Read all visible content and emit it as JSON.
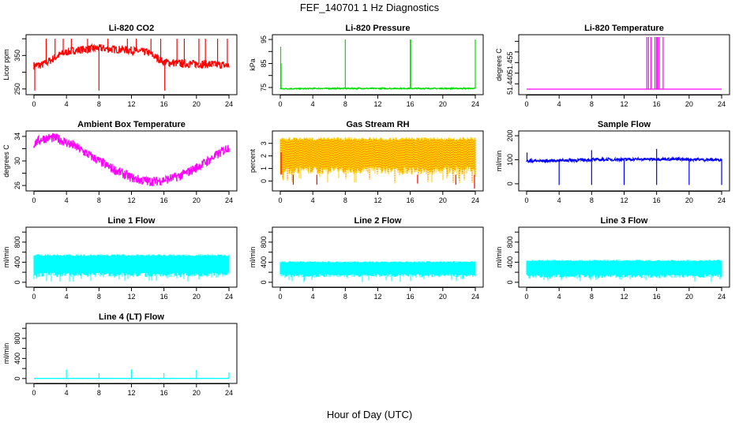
{
  "chart_data": {
    "title": "FEF_140701  1 Hz Diagnostics",
    "xlabel": "Hour of Day (UTC)",
    "xlim": [
      0,
      24
    ],
    "xticks": [
      0,
      4,
      8,
      12,
      16,
      20,
      24
    ],
    "panels": [
      {
        "title": "Li-820 CO2",
        "type": "line",
        "ylabel": "Licor ppm",
        "color": "#ff0000",
        "ylim": [
          240,
          405
        ],
        "yticks": [
          250,
          300,
          350,
          400
        ],
        "ytick_labels": [
          "250",
          "",
          "350",
          ""
        ],
        "hourly_baseline": [
          320,
          322,
          335,
          350,
          360,
          365,
          368,
          370,
          372,
          370,
          368,
          368,
          365,
          362,
          360,
          345,
          330,
          328,
          326,
          325,
          325,
          324,
          323,
          322,
          320
        ],
        "noise": 12,
        "spikes": [
          [
            0.1,
            245
          ],
          [
            1.5,
            400
          ],
          [
            2.6,
            400
          ],
          [
            3.6,
            400
          ],
          [
            4.6,
            400
          ],
          [
            6.6,
            400
          ],
          [
            8,
            245
          ],
          [
            9.1,
            400
          ],
          [
            11.5,
            400
          ],
          [
            12.6,
            400
          ],
          [
            14.4,
            400
          ],
          [
            15.6,
            400
          ],
          [
            16.1,
            245
          ],
          [
            17.6,
            400
          ],
          [
            18.5,
            400
          ],
          [
            20.3,
            400
          ],
          [
            21.1,
            400
          ],
          [
            22.6,
            400
          ],
          [
            23.8,
            400
          ]
        ]
      },
      {
        "title": "Li-820 Pressure",
        "type": "line",
        "ylabel": "kPa",
        "color": "#00dd00",
        "ylim": [
          73,
          96
        ],
        "yticks": [
          75,
          80,
          85,
          90,
          95
        ],
        "ytick_labels": [
          "75",
          "",
          "85",
          "",
          "95"
        ],
        "hourly_baseline": [
          74.5,
          74.5,
          74.5,
          74.5,
          74.6,
          74.6,
          74.6,
          74.6,
          74.6,
          74.6,
          74.6,
          74.6,
          74.6,
          74.6,
          74.6,
          74.6,
          74.6,
          74.6,
          74.6,
          74.6,
          74.6,
          74.6,
          74.6,
          74.6,
          74.6
        ],
        "noise": 0.2,
        "spikes": [
          [
            0.05,
            92
          ],
          [
            0.1,
            85
          ],
          [
            8,
            95
          ],
          [
            16,
            95
          ],
          [
            16.05,
            95
          ],
          [
            24,
            95
          ]
        ]
      },
      {
        "title": "Li-820 Temperature",
        "type": "line",
        "ylabel": "degrees C",
        "color": "#ff00ff",
        "ylim": [
          51.436,
          51.462
        ],
        "yticks": [
          51.44,
          51.445,
          51.45,
          51.455,
          51.46
        ],
        "ytick_labels": [
          "51.440",
          "",
          "51.455",
          "",
          ""
        ],
        "hourly_baseline": [
          51.4375,
          51.4375,
          51.4375,
          51.4375,
          51.4375,
          51.4375,
          51.4375,
          51.4375,
          51.4375,
          51.4375,
          51.4375,
          51.4375,
          51.4375,
          51.4375,
          51.4375,
          51.4375,
          51.4375,
          51.4375,
          51.4375,
          51.4375,
          51.4375,
          51.4375,
          51.4375,
          51.4375,
          51.4375
        ],
        "noise": 0,
        "spikes": [
          [
            14.8,
            51.462
          ],
          [
            15.0,
            51.462
          ],
          [
            15.3,
            51.462
          ],
          [
            15.8,
            51.462
          ],
          [
            16.0,
            51.462
          ],
          [
            16.1,
            51.462
          ],
          [
            16.3,
            51.462
          ],
          [
            16.8,
            51.462
          ]
        ]
      },
      {
        "title": "Ambient Box Temperature",
        "type": "line",
        "ylabel": "degrees C",
        "color": "#ff00ff",
        "ylim": [
          25.5,
          34.5
        ],
        "yticks": [
          26,
          28,
          30,
          32,
          34
        ],
        "ytick_labels": [
          "26",
          "",
          "30",
          "",
          "34"
        ],
        "hourly_baseline": [
          32.8,
          33.6,
          33.8,
          33.6,
          33.0,
          32.4,
          31.6,
          30.8,
          30.0,
          29.2,
          28.5,
          27.9,
          27.3,
          26.9,
          26.7,
          26.7,
          26.9,
          27.2,
          27.6,
          28.2,
          28.9,
          29.7,
          30.5,
          31.4,
          32.3
        ],
        "noise": 0.8,
        "spikes": []
      },
      {
        "title": "Gas Stream RH",
        "type": "band",
        "ylabel": "percent",
        "color": "#ffcc00",
        "color2": "#ff0000",
        "ylim": [
          -0.6,
          3.8
        ],
        "yticks": [
          0,
          1,
          2,
          3
        ],
        "ytick_labels": [
          "0",
          "1",
          "2",
          "3"
        ],
        "band_low": 0.5,
        "band_high": 3.5,
        "spikes": [
          [
            0.1,
            2.3
          ],
          [
            1.6,
            -0.3
          ],
          [
            4.5,
            -0.3
          ],
          [
            16.9,
            -0.2
          ],
          [
            21.6,
            -0.3
          ],
          [
            23.9,
            -0.6
          ]
        ]
      },
      {
        "title": "Sample Flow",
        "type": "line",
        "ylabel": "ml/min",
        "color": "#0000ff",
        "ylim": [
          -20,
          210
        ],
        "yticks": [
          0,
          100,
          200
        ],
        "ytick_labels": [
          "0",
          "100",
          "200"
        ],
        "hourly_baseline": [
          95,
          95,
          95,
          96,
          97,
          98,
          98,
          99,
          100,
          100,
          101,
          101,
          101,
          102,
          102,
          102,
          103,
          103,
          102,
          102,
          101,
          101,
          100,
          100,
          100
        ],
        "noise": 6,
        "spikes": [
          [
            0.05,
            130
          ],
          [
            4,
            -5
          ],
          [
            8,
            -5
          ],
          [
            8,
            140
          ],
          [
            12,
            -5
          ],
          [
            16,
            -5
          ],
          [
            16,
            145
          ],
          [
            20,
            -5
          ],
          [
            24,
            -5
          ]
        ]
      },
      {
        "title": "Line 1 Flow",
        "type": "band",
        "ylabel": "ml/min",
        "color": "#00ffff",
        "ylim": [
          -50,
          1050
        ],
        "yticks": [
          0,
          200,
          400,
          600,
          800,
          1000
        ],
        "ytick_labels": [
          "0",
          "",
          "400",
          "",
          "800",
          ""
        ],
        "band_low": 100,
        "band_high": 560,
        "spikes": []
      },
      {
        "title": "Line 2 Flow",
        "type": "band",
        "ylabel": "ml/min",
        "color": "#00ffff",
        "ylim": [
          -50,
          1050
        ],
        "yticks": [
          0,
          200,
          400,
          600,
          800,
          1000
        ],
        "ytick_labels": [
          "0",
          "",
          "400",
          "",
          "800",
          ""
        ],
        "band_low": 100,
        "band_high": 420,
        "spikes": []
      },
      {
        "title": "Line 3 Flow",
        "type": "band",
        "ylabel": "ml/min",
        "color": "#00ffff",
        "ylim": [
          -50,
          1050
        ],
        "yticks": [
          0,
          200,
          400,
          600,
          800,
          1000
        ],
        "ytick_labels": [
          "0",
          "",
          "400",
          "",
          "800",
          ""
        ],
        "band_low": 80,
        "band_high": 450,
        "spikes": []
      },
      {
        "title": "Line 4 (LT) Flow",
        "type": "line",
        "ylabel": "ml/min",
        "color": "#00ffff",
        "ylim": [
          -50,
          1050
        ],
        "yticks": [
          0,
          200,
          400,
          600,
          800,
          1000
        ],
        "ytick_labels": [
          "0",
          "",
          "400",
          "",
          "800",
          ""
        ],
        "hourly_baseline": [
          2,
          2,
          2,
          2,
          2,
          2,
          2,
          2,
          2,
          2,
          2,
          2,
          2,
          2,
          2,
          2,
          2,
          2,
          2,
          2,
          2,
          2,
          2,
          2,
          2
        ],
        "noise": 1,
        "spikes": [
          [
            4,
            180
          ],
          [
            8,
            110
          ],
          [
            12,
            180
          ],
          [
            16,
            110
          ],
          [
            20,
            170
          ],
          [
            24,
            120
          ]
        ]
      }
    ]
  }
}
